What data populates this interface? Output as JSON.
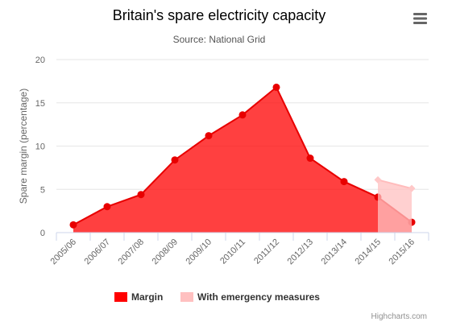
{
  "chart_data": {
    "type": "area",
    "title": "Britain's spare electricity capacity",
    "subtitle": "Source: National Grid",
    "ylabel": "Spare margin (percentage)",
    "xlabel": "",
    "categories": [
      "2005/06",
      "2006/07",
      "2007/08",
      "2008/09",
      "2009/10",
      "2010/11",
      "2011/12",
      "2012/13",
      "2013/14",
      "2014/15",
      "2015/16"
    ],
    "ylim": [
      0,
      20
    ],
    "yticks": [
      "0",
      "5",
      "10",
      "15",
      "20"
    ],
    "grid": true,
    "legend_placement": "bottom-center",
    "series": [
      {
        "name": "Margin",
        "color": "#ff0000",
        "values": [
          0.9,
          3.0,
          4.4,
          8.4,
          11.2,
          13.6,
          16.8,
          8.6,
          5.9,
          4.1,
          1.2
        ]
      },
      {
        "name": "With emergency measures",
        "color": "#ffc0c0",
        "values": [
          null,
          null,
          null,
          null,
          null,
          null,
          null,
          null,
          null,
          6.1,
          5.1
        ]
      }
    ]
  },
  "credits": "Highcharts.com",
  "menu_icon": "hamburger-menu-icon"
}
